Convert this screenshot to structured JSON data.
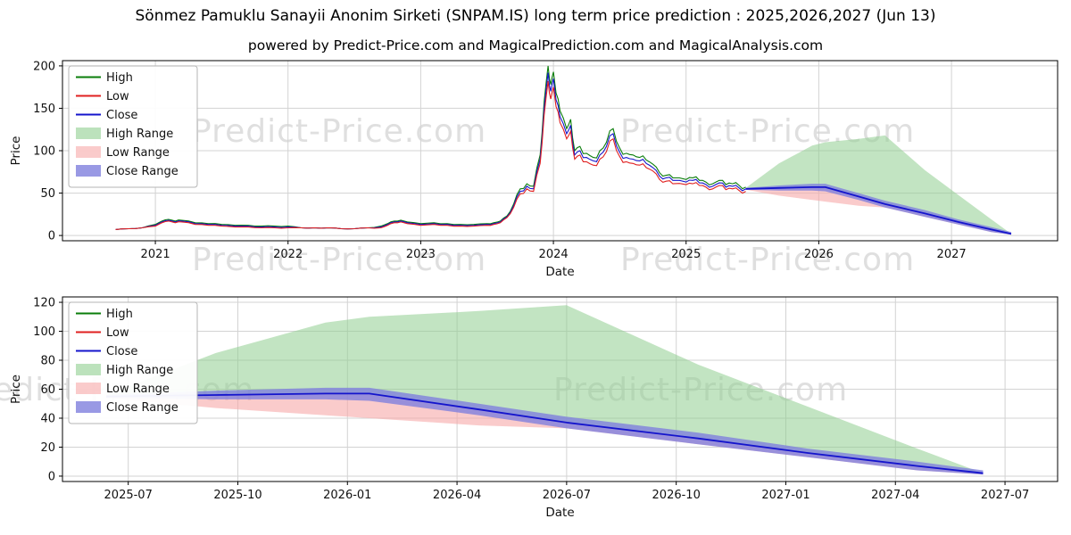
{
  "title": "Sönmez Pamuklu Sanayii Anonim Sirketi (SNPAM.IS) long term price prediction : 2025,2026,2027 (Jun 13)",
  "subtitle": "powered by Predict-Price.com and MagicalPrediction.com and MagicalAnalysis.com",
  "watermark": "Predict-Price.com",
  "colors": {
    "high": "#0a7d0a",
    "low": "#e02020",
    "close": "#1414cc",
    "high_range": "#8fce8f",
    "low_range": "#f6a8a8",
    "close_range": "#8080dd",
    "grid": "#d3d3d3",
    "frame": "#000000"
  },
  "chart_data": [
    {
      "name": "price-history-and-prediction-chart",
      "type": "line",
      "title": "",
      "xlabel": "Date",
      "ylabel": "Price",
      "xlim": [
        2020.3,
        2027.8
      ],
      "ylim": [
        0,
        200
      ],
      "yticks": [
        0,
        50,
        100,
        150,
        200
      ],
      "xticks": [
        2021,
        2022,
        2023,
        2024,
        2025,
        2026,
        2027
      ],
      "xtick_labels": [
        "2021",
        "2022",
        "2023",
        "2024",
        "2025",
        "2026",
        "2027"
      ],
      "grid": true,
      "legend_position": "upper left",
      "legend": [
        {
          "label": "High",
          "type": "line",
          "color": "high"
        },
        {
          "label": "Low",
          "type": "line",
          "color": "low"
        },
        {
          "label": "Close",
          "type": "line",
          "color": "close"
        },
        {
          "label": "High Range",
          "type": "patch",
          "color": "high_range"
        },
        {
          "label": "Low Range",
          "type": "patch",
          "color": "low_range"
        },
        {
          "label": "Close Range",
          "type": "patch",
          "color": "close_range"
        }
      ],
      "series": {
        "history": {
          "x": [
            2020.7,
            2020.8,
            2020.9,
            2021.0,
            2021.05,
            2021.1,
            2021.15,
            2021.2,
            2021.3,
            2021.4,
            2021.5,
            2021.6,
            2021.7,
            2021.8,
            2021.9,
            2022.0,
            2022.1,
            2022.2,
            2022.3,
            2022.4,
            2022.5,
            2022.6,
            2022.7,
            2022.75,
            2022.8,
            2022.85,
            2022.9,
            2023.0,
            2023.1,
            2023.2,
            2023.3,
            2023.4,
            2023.5,
            2023.55,
            2023.6,
            2023.65,
            2023.7,
            2023.75,
            2023.8,
            2023.85,
            2023.9,
            2023.93,
            2023.96,
            2023.98,
            2024.0,
            2024.02,
            2024.05,
            2024.1,
            2024.13,
            2024.16,
            2024.2,
            2024.25,
            2024.3,
            2024.35,
            2024.4,
            2024.45,
            2024.5,
            2024.55,
            2024.6,
            2024.65,
            2024.7,
            2024.75,
            2024.8,
            2024.85,
            2024.9,
            2025.0,
            2025.05,
            2025.1,
            2025.15,
            2025.2,
            2025.25,
            2025.3,
            2025.35,
            2025.4,
            2025.45
          ],
          "high": [
            7,
            8,
            9,
            13,
            17,
            19,
            17,
            18,
            15,
            14,
            13,
            12,
            12,
            11,
            11,
            11,
            9,
            9,
            9,
            8,
            8,
            9,
            11,
            14,
            17,
            18,
            16,
            14,
            15,
            14,
            13,
            13,
            14,
            15,
            17,
            23,
            37,
            55,
            61,
            58,
            95,
            158,
            200,
            178,
            193,
            168,
            147,
            126,
            137,
            100,
            105,
            97,
            92,
            100,
            110,
            126,
            103,
            97,
            95,
            92,
            89,
            84,
            74,
            71,
            68,
            66,
            68,
            65,
            63,
            61,
            65,
            60,
            61,
            59,
            57
          ],
          "low": [
            7,
            8,
            9,
            11,
            15,
            17,
            15,
            16,
            13,
            12,
            11,
            10,
            10,
            9,
            9,
            9,
            9,
            9,
            9,
            8,
            8,
            9,
            9,
            12,
            15,
            16,
            14,
            12,
            13,
            12,
            11,
            11,
            12,
            13,
            15,
            21,
            33,
            49,
            55,
            52,
            85,
            142,
            182,
            161,
            175,
            152,
            133,
            114,
            123,
            90,
            95,
            87,
            83,
            90,
            99,
            114,
            93,
            87,
            85,
            83,
            80,
            76,
            66,
            64,
            61,
            60,
            61,
            59,
            57,
            55,
            59,
            54,
            55,
            53,
            52
          ],
          "close": [
            7,
            8,
            9,
            12,
            16,
            18,
            16,
            17,
            14,
            13,
            12,
            11,
            11,
            10,
            10,
            10,
            9,
            9,
            9,
            8,
            8,
            9,
            10,
            13,
            16,
            17,
            15,
            13,
            14,
            13,
            12,
            12,
            13,
            14,
            16,
            22,
            35,
            52,
            58,
            55,
            90,
            150,
            192,
            170,
            185,
            160,
            140,
            120,
            130,
            95,
            100,
            92,
            88,
            95,
            105,
            120,
            98,
            92,
            90,
            88,
            85,
            80,
            70,
            68,
            65,
            63,
            65,
            62,
            60,
            58,
            62,
            57,
            58,
            56,
            55
          ]
        },
        "prediction": {
          "x": [
            2025.45,
            2025.7,
            2025.95,
            2026.05,
            2026.3,
            2026.5,
            2026.8,
            2027.05,
            2027.3,
            2027.45
          ],
          "close": [
            55,
            56,
            57,
            57,
            46,
            37,
            26,
            16,
            7,
            2
          ],
          "close_upper": [
            56,
            59,
            61,
            61,
            50,
            41,
            30,
            19,
            10,
            4
          ],
          "close_lower": [
            54,
            53,
            53,
            52,
            42,
            33,
            22,
            13,
            4,
            1
          ],
          "high_top": [
            56,
            85,
            106,
            110,
            114,
            118,
            77,
            48,
            19,
            2
          ],
          "low_bottom": [
            54,
            47,
            42,
            40,
            35,
            33,
            22,
            13,
            4,
            1
          ]
        }
      }
    },
    {
      "name": "prediction-detail-chart",
      "type": "line",
      "title": "",
      "xlabel": "Date",
      "ylabel": "Price",
      "xlim": [
        2025.35,
        2027.62
      ],
      "ylim": [
        0,
        120
      ],
      "yticks": [
        0,
        20,
        40,
        60,
        80,
        100,
        120
      ],
      "xticks": [
        2025.5,
        2025.75,
        2026.0,
        2026.25,
        2026.5,
        2026.75,
        2027.0,
        2027.25,
        2027.5
      ],
      "xtick_labels": [
        "2025-07",
        "2025-10",
        "2026-01",
        "2026-04",
        "2026-07",
        "2026-10",
        "2027-01",
        "2027-04",
        "2027-07"
      ],
      "grid": true,
      "legend_position": "upper left",
      "legend": [
        {
          "label": "High",
          "type": "line",
          "color": "high"
        },
        {
          "label": "Low",
          "type": "line",
          "color": "low"
        },
        {
          "label": "Close",
          "type": "line",
          "color": "close"
        },
        {
          "label": "High Range",
          "type": "patch",
          "color": "high_range"
        },
        {
          "label": "Low Range",
          "type": "patch",
          "color": "low_range"
        },
        {
          "label": "Close Range",
          "type": "patch",
          "color": "close_range"
        }
      ],
      "series": {
        "prediction": {
          "x": [
            2025.45,
            2025.7,
            2025.95,
            2026.05,
            2026.3,
            2026.5,
            2026.8,
            2027.05,
            2027.3,
            2027.45
          ],
          "close": [
            55,
            56,
            57,
            57,
            46,
            37,
            26,
            16,
            7,
            2
          ],
          "close_upper": [
            56,
            59,
            61,
            61,
            50,
            41,
            30,
            19,
            10,
            4
          ],
          "close_lower": [
            54,
            53,
            53,
            52,
            42,
            33,
            22,
            13,
            4,
            1
          ],
          "high_top": [
            56,
            85,
            106,
            110,
            114,
            118,
            77,
            48,
            19,
            2
          ],
          "low_bottom": [
            54,
            47,
            42,
            40,
            35,
            33,
            22,
            13,
            4,
            1
          ]
        }
      }
    }
  ]
}
